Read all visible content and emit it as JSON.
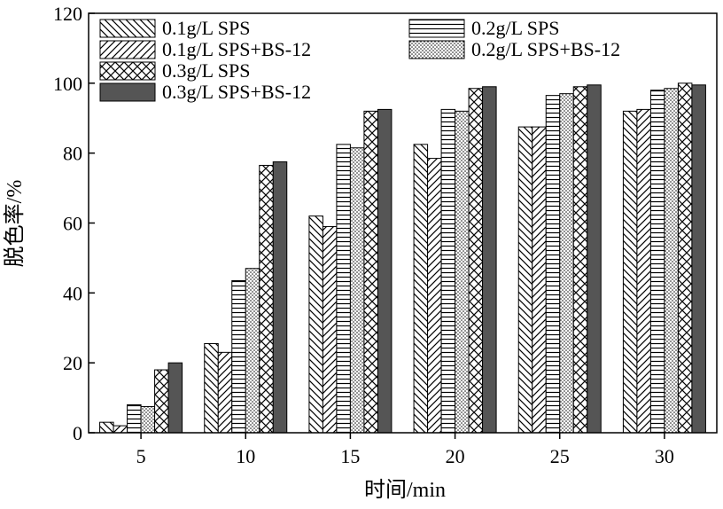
{
  "chart_data": {
    "type": "bar",
    "xlabel": "时间/min",
    "ylabel": "脱色率/%",
    "categories": [
      "5",
      "10",
      "15",
      "20",
      "25",
      "30"
    ],
    "ylim": [
      0,
      120
    ],
    "yticks": [
      "0",
      "20",
      "40",
      "60",
      "80",
      "100",
      "120"
    ],
    "grid": false,
    "legend_position": "top",
    "series": [
      {
        "name": "0.1g/L SPS",
        "pattern": "diagonal-backslash",
        "values": [
          3,
          25.5,
          62,
          82.5,
          87.5,
          92
        ]
      },
      {
        "name": "0.1g/L SPS+BS-12",
        "pattern": "diagonal-slash",
        "values": [
          2,
          23,
          59,
          78.5,
          87.5,
          92.5
        ]
      },
      {
        "name": "0.2g/L SPS",
        "pattern": "horizontal-lines",
        "values": [
          8,
          43.5,
          82.5,
          92.5,
          96.5,
          98
        ]
      },
      {
        "name": "0.2g/L SPS+BS-12",
        "pattern": "dots",
        "values": [
          7.5,
          47,
          81.5,
          92,
          97,
          98.5
        ]
      },
      {
        "name": "0.3g/L SPS",
        "pattern": "crosshatch",
        "values": [
          18,
          76.5,
          92,
          98.5,
          99,
          100
        ]
      },
      {
        "name": "0.3g/L SPS+BS-12",
        "pattern": "solid-dark",
        "color": "#555555",
        "values": [
          20,
          77.5,
          92.5,
          99,
          99.5,
          99.5
        ]
      }
    ]
  }
}
